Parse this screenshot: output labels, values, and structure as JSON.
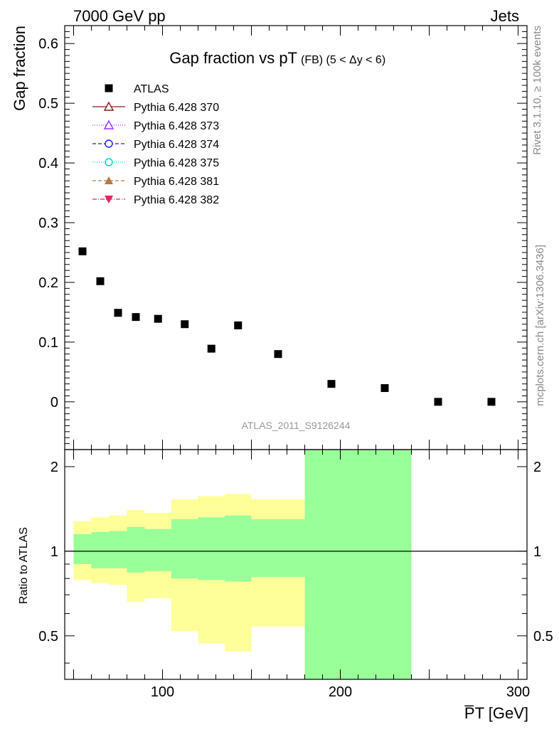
{
  "header": {
    "left": "7000 GeV pp",
    "right": "Jets"
  },
  "side_labels": {
    "rivet": "Rivet 3.1.10, ≥ 100k events",
    "mcplots": "mcplots.cern.ch [arXiv:1306.3436]"
  },
  "colors": {
    "data": "#000000",
    "band_inner": "#99ff99",
    "band_outer": "#ffff99",
    "axis": "#000000",
    "watermark": "#999999"
  },
  "chart_data": [
    {
      "type": "scatter",
      "title": "Gap fraction vs pT",
      "title_suffix": "(FB) (5 < Δy < 6)",
      "ylabel": "Gap fraction",
      "watermark": "ATLAS_2011_S9126244",
      "xlim": [
        45,
        305
      ],
      "ylim": [
        -0.08,
        0.63
      ],
      "yticks": [
        0,
        0.1,
        0.2,
        0.3,
        0.4,
        0.5,
        0.6
      ],
      "ytick_labels": [
        "0",
        "0.1",
        "0.2",
        "0.3",
        "0.4",
        "0.5",
        "0.6"
      ],
      "legend_position": "top-left",
      "series": [
        {
          "name": "ATLAS",
          "marker": "square",
          "color": "#000000",
          "x": [
            55,
            65,
            75,
            85,
            97.5,
            112.5,
            127.5,
            142.5,
            165,
            195,
            225,
            255,
            285
          ],
          "y": [
            0.252,
            0.202,
            0.149,
            0.142,
            0.139,
            0.13,
            0.089,
            0.128,
            0.08,
            0.03,
            0.023,
            0.0,
            0.0
          ]
        }
      ],
      "legend": [
        {
          "name": "ATLAS",
          "marker": "square",
          "color": "#000000",
          "dash": ""
        },
        {
          "name": "Pythia 6.428 370",
          "marker": "triangle-up-open",
          "color": "#8b1a1a",
          "dash": ""
        },
        {
          "name": "Pythia 6.428 373",
          "marker": "triangle-up-open",
          "color": "#9933ff",
          "dash": "1,2"
        },
        {
          "name": "Pythia 6.428 374",
          "marker": "circle-open",
          "color": "#1a1aff",
          "dash": "5,3"
        },
        {
          "name": "Pythia 6.428 375",
          "marker": "circle-open",
          "color": "#00d5c0",
          "dash": "1,2"
        },
        {
          "name": "Pythia 6.428 381",
          "marker": "triangle-up",
          "color": "#b5794a",
          "dash": "5,3"
        },
        {
          "name": "Pythia 6.428 382",
          "marker": "triangle-down",
          "color": "#e0245e",
          "dash": "6,2,1,2"
        }
      ]
    },
    {
      "type": "area",
      "ylabel": "Ratio to ATLAS",
      "xlabel": "P̅T [GeV]",
      "xlim": [
        45,
        305
      ],
      "ylim": [
        0.35,
        2.3
      ],
      "ylog": true,
      "xticks": [
        100,
        200,
        300
      ],
      "xtick_labels": [
        "100",
        "200",
        "300"
      ],
      "yticks": [
        0.5,
        1,
        2
      ],
      "ytick_labels": [
        "0.5",
        "1",
        "2"
      ],
      "reference_line": 1,
      "bins": [
        {
          "x": [
            50,
            60
          ],
          "inner": [
            0.9,
            1.15
          ],
          "outer": [
            0.79,
            1.28
          ]
        },
        {
          "x": [
            60,
            70
          ],
          "inner": [
            0.87,
            1.17
          ],
          "outer": [
            0.77,
            1.32
          ]
        },
        {
          "x": [
            70,
            80
          ],
          "inner": [
            0.87,
            1.18
          ],
          "outer": [
            0.76,
            1.34
          ]
        },
        {
          "x": [
            80,
            90
          ],
          "inner": [
            0.84,
            1.22
          ],
          "outer": [
            0.66,
            1.4
          ]
        },
        {
          "x": [
            90,
            105
          ],
          "inner": [
            0.85,
            1.2
          ],
          "outer": [
            0.68,
            1.37
          ]
        },
        {
          "x": [
            105,
            120
          ],
          "inner": [
            0.8,
            1.3
          ],
          "outer": [
            0.52,
            1.53
          ]
        },
        {
          "x": [
            120,
            135
          ],
          "inner": [
            0.79,
            1.32
          ],
          "outer": [
            0.47,
            1.57
          ]
        },
        {
          "x": [
            135,
            150
          ],
          "inner": [
            0.78,
            1.34
          ],
          "outer": [
            0.44,
            1.6
          ]
        },
        {
          "x": [
            150,
            180
          ],
          "inner": [
            0.81,
            1.3
          ],
          "outer": [
            0.54,
            1.53
          ]
        },
        {
          "x": [
            180,
            240
          ],
          "inner": [
            0.2,
            10
          ],
          "outer": [
            0.2,
            10
          ]
        }
      ]
    }
  ]
}
